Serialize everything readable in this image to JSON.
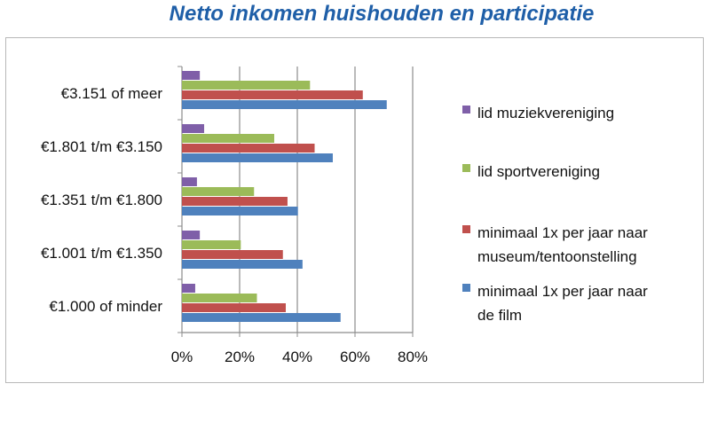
{
  "chart_data": {
    "type": "bar",
    "orientation": "horizontal",
    "title": "Netto inkomen huishouden en participatie",
    "categories": [
      "€1.000 of minder",
      "€1.001 t/m €1.350",
      "€1.351 t/m €1.800",
      "€1.801 t/m €3.150",
      "€3.151 of meer"
    ],
    "series": [
      {
        "name": "lid muziekvereniging",
        "color": "#7f5fa8",
        "values": [
          4.6,
          6.2,
          5.2,
          7.7,
          6.2
        ]
      },
      {
        "name": "lid sportvereniging",
        "color": "#9bbb59",
        "values": [
          26,
          20.4,
          25,
          32,
          44.4
        ]
      },
      {
        "name": "minimaal 1x per jaar naar museum/tentoonstelling",
        "color": "#c0504d",
        "values": [
          36,
          35,
          36.6,
          46,
          62.7
        ]
      },
      {
        "name": "minimaal 1x per jaar naar de film",
        "color": "#4f81bd",
        "values": [
          55,
          41.8,
          40.2,
          52.3,
          71
        ]
      }
    ],
    "legend_lines": [
      [
        "lid muziekvereniging"
      ],
      [
        "lid sportvereniging"
      ],
      [
        "minimaal 1x per jaar naar",
        "museum/tentoonstelling"
      ],
      [
        "minimaal 1x per jaar naar",
        "de film"
      ]
    ],
    "xlim": [
      0,
      80
    ],
    "xticks": [
      "0%",
      "20%",
      "40%",
      "60%",
      "80%"
    ],
    "grid": true,
    "legend_position": "right"
  }
}
